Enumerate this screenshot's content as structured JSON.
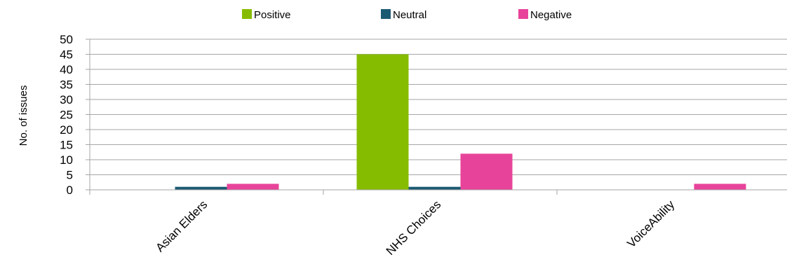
{
  "chart_data": {
    "type": "bar",
    "categories": [
      "Asian Elders",
      "NHS Choices",
      "VoiceAbility"
    ],
    "series": [
      {
        "name": "Positive",
        "values": [
          0,
          45,
          0
        ],
        "color": "#86bc00"
      },
      {
        "name": "Neutral",
        "values": [
          1,
          1,
          0
        ],
        "color": "#1b5a73"
      },
      {
        "name": "Negative",
        "values": [
          2,
          12,
          2
        ],
        "color": "#e8439a"
      }
    ],
    "title": "",
    "xlabel": "",
    "ylabel": "No. of issues",
    "ylim": [
      0,
      50
    ],
    "yticks": [
      0,
      5,
      10,
      15,
      20,
      25,
      30,
      35,
      40,
      45,
      50
    ],
    "grid": true,
    "legend": "top"
  }
}
